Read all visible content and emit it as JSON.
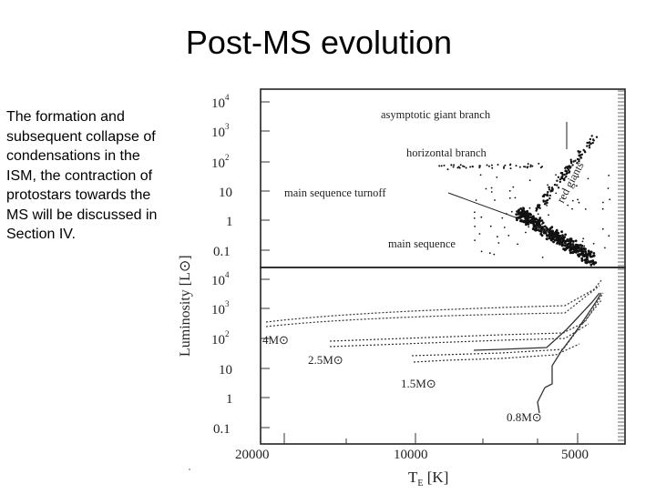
{
  "slide": {
    "title": "Post-MS evolution",
    "body": "The formation and subsequent collapse of condensations in the ISM, the contraction of protostars towards the MS will be discussed in Section IV."
  },
  "figure": {
    "y_axis_label": "Luminosity",
    "y_axis_unit": "[L⊙]",
    "x_axis_label": "T",
    "x_axis_subscript": "E",
    "x_axis_unit": "[K]",
    "x_ticks": [
      "20000",
      "10000",
      "5000"
    ],
    "y_ticks": [
      {
        "base": "10",
        "exp": "4"
      },
      {
        "base": "10",
        "exp": "3"
      },
      {
        "base": "10",
        "exp": "2"
      },
      {
        "base": "10",
        "exp": ""
      },
      {
        "base": "1",
        "exp": ""
      },
      {
        "base": "0.1",
        "exp": ""
      }
    ],
    "top_labels": {
      "agb": "asymptotic giant branch",
      "hb": "horizontal branch",
      "rg": "red giants",
      "turnoff": "main sequence turnoff",
      "ms": "main sequence"
    },
    "track_labels": {
      "m4": "4M⊙",
      "m25": "2.5M⊙",
      "m15": "1.5M⊙",
      "m08": "0.8M⊙"
    }
  }
}
